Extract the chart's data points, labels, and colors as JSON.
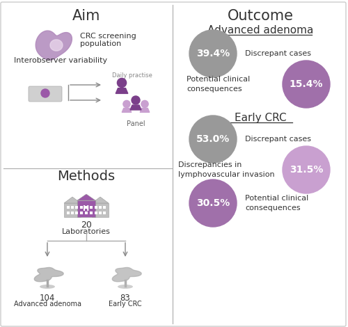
{
  "title_aim": "Aim",
  "title_outcome": "Outcome",
  "title_methods": "Methods",
  "section_adv_adenoma": "Advanced adenoma",
  "section_early_crc": "Early CRC",
  "bg_color": "#ffffff",
  "border_color": "#cccccc",
  "divider_color": "#aaaaaa",
  "circle_gray": "#999999",
  "circle_purple_light": "#c9a0d0",
  "circle_purple_medium": "#a070aa",
  "text_color_dark": "#333333",
  "text_color_mid": "#666666",
  "text_color_light": "#888888",
  "aim_text1": "CRC screening",
  "aim_text2": "population",
  "aim_text3": "Interobserver variability",
  "aim_text4": "Daily practise",
  "aim_text5": "Panel",
  "methods_text1": "20",
  "methods_text2": "Laboratories",
  "methods_text3": "104",
  "methods_text4": "Advanced adenoma",
  "methods_text5": "83",
  "methods_text6": "Early CRC",
  "purple_dark": "#7b3f8a",
  "purple_mid": "#9b59a8",
  "purple_light": "#c9a0d0",
  "gray_icon": "#999999",
  "gray_light": "#bbbbbb"
}
